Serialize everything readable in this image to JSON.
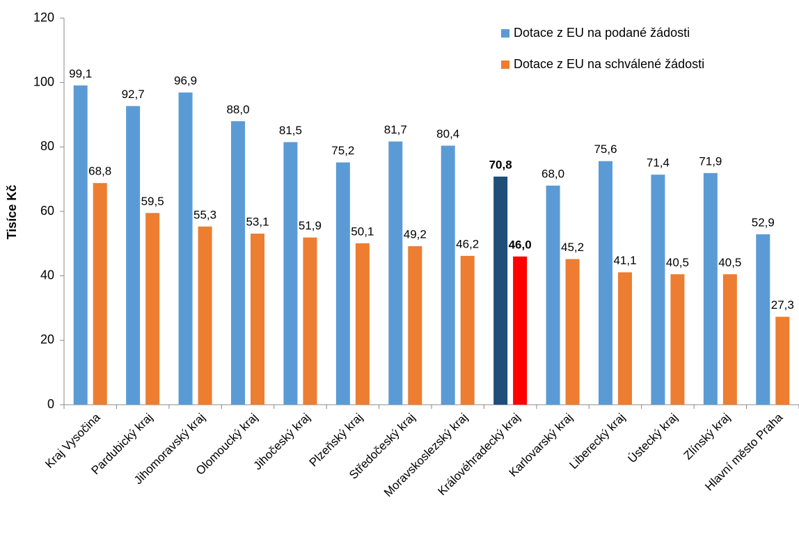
{
  "chart_data": {
    "type": "bar",
    "y_label": "Tisíce Kč",
    "categories": [
      "Kraj Vysočina",
      "Pardubický kraj",
      "Jihomoravský kraj",
      "Olomoucký kraj",
      "Jihočeský kraj",
      "Plzeňský kraj",
      "Středočeský kraj",
      "Moravskoslezský kraj",
      "Královéhradecký kraj",
      "Karlovarský kraj",
      "Liberecký kraj",
      "Ústecký kraj",
      "Zlínský kraj",
      "Hlavní město Praha"
    ],
    "series": [
      {
        "name": "Dotace z EU na podané žádosti",
        "color": "#5b9bd5",
        "colors": [
          "#5b9bd5",
          "#5b9bd5",
          "#5b9bd5",
          "#5b9bd5",
          "#5b9bd5",
          "#5b9bd5",
          "#5b9bd5",
          "#5b9bd5",
          "#1f4e79",
          "#5b9bd5",
          "#5b9bd5",
          "#5b9bd5",
          "#5b9bd5",
          "#5b9bd5"
        ],
        "values": [
          99.1,
          92.7,
          96.9,
          88.0,
          81.5,
          75.2,
          81.7,
          80.4,
          70.8,
          68.0,
          75.6,
          71.4,
          71.9,
          52.9
        ],
        "value_labels": [
          "99,1",
          "92,7",
          "96,9",
          "88,0",
          "81,5",
          "75,2",
          "81,7",
          "80,4",
          "70,8",
          "68,0",
          "75,6",
          "71,4",
          "71,9",
          "52,9"
        ]
      },
      {
        "name": "Dotace z EU na schválené žádosti",
        "color": "#ed7d31",
        "colors": [
          "#ed7d31",
          "#ed7d31",
          "#ed7d31",
          "#ed7d31",
          "#ed7d31",
          "#ed7d31",
          "#ed7d31",
          "#ed7d31",
          "#ff0000",
          "#ed7d31",
          "#ed7d31",
          "#ed7d31",
          "#ed7d31",
          "#ed7d31"
        ],
        "values": [
          68.8,
          59.5,
          55.3,
          53.1,
          51.9,
          50.1,
          49.2,
          46.2,
          46.0,
          45.2,
          41.1,
          40.5,
          40.5,
          27.3
        ],
        "value_labels": [
          "68,8",
          "59,5",
          "55,3",
          "53,1",
          "51,9",
          "50,1",
          "49,2",
          "46,2",
          "46,0",
          "45,2",
          "41,1",
          "40,5",
          "40,5",
          "27,3"
        ]
      }
    ],
    "ylim": [
      0,
      120
    ],
    "yticks": [
      0,
      20,
      40,
      60,
      80,
      100,
      120
    ],
    "grid": false,
    "legend": "upper right"
  }
}
